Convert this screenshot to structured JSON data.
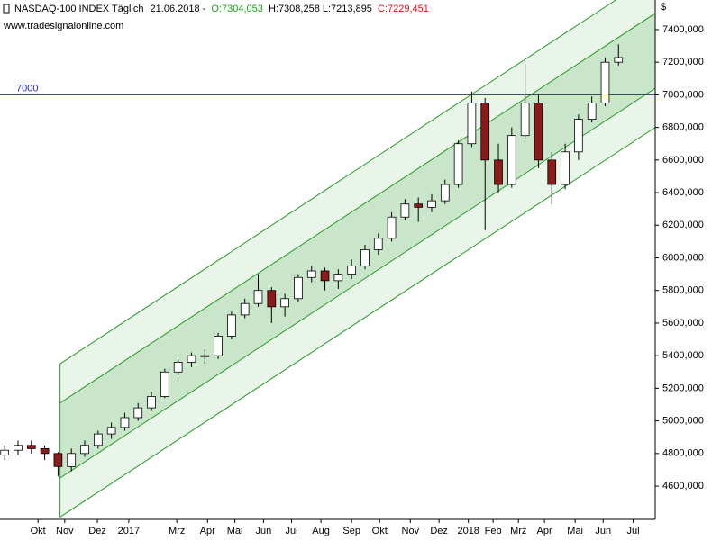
{
  "chart_data": {
    "type": "candlestick",
    "title": "NASDAQ-100 INDEX Täglich",
    "date": "21.06.2018 -",
    "open_label": "O:7304,053",
    "high_low_label": "H:7308,258 L:7213,895",
    "close_label": "C:7229,451",
    "website": "www.tradesignalonline.com",
    "currency": "$",
    "x": [
      0,
      2,
      4,
      6,
      8,
      10,
      12,
      14,
      16,
      18,
      20,
      22,
      24,
      26,
      28,
      30,
      32,
      34,
      36,
      38,
      40,
      42,
      44,
      46,
      48,
      50,
      52,
      54,
      56,
      58,
      60,
      62,
      64,
      66,
      68,
      70,
      72,
      74,
      76,
      78,
      80,
      82,
      84,
      86,
      88,
      90,
      92
    ],
    "open": [
      4790,
      4820,
      4850,
      4830,
      4800,
      4720,
      4800,
      4850,
      4920,
      4960,
      5020,
      5080,
      5150,
      5300,
      5360,
      5400,
      5400,
      5520,
      5650,
      5720,
      5800,
      5700,
      5750,
      5880,
      5920,
      5860,
      5900,
      5950,
      6050,
      6120,
      6250,
      6330,
      6310,
      6350,
      6450,
      6700,
      6950,
      6600,
      6450,
      6750,
      6950,
      6600,
      6450,
      6650,
      6850,
      6950,
      7200
    ],
    "high": [
      4850,
      4880,
      4880,
      4850,
      4810,
      4830,
      4880,
      4940,
      4990,
      5050,
      5110,
      5180,
      5320,
      5380,
      5420,
      5440,
      5540,
      5670,
      5750,
      5900,
      5820,
      5780,
      5900,
      5950,
      5940,
      5930,
      5990,
      6080,
      6150,
      6280,
      6360,
      6370,
      6390,
      6480,
      6720,
      7020,
      6980,
      6700,
      6800,
      7190,
      7000,
      6650,
      6700,
      6880,
      6990,
      7230,
      7310
    ],
    "low": [
      4760,
      4790,
      4800,
      4760,
      4660,
      4690,
      4780,
      4830,
      4890,
      4940,
      5000,
      5060,
      5140,
      5280,
      5330,
      5350,
      5380,
      5500,
      5630,
      5700,
      5600,
      5640,
      5730,
      5850,
      5800,
      5810,
      5870,
      5930,
      6020,
      6100,
      6230,
      6220,
      6280,
      6330,
      6430,
      6680,
      6170,
      6400,
      6430,
      6730,
      6550,
      6330,
      6420,
      6600,
      6830,
      6930,
      7180
    ],
    "close": [
      4820,
      4850,
      4830,
      4800,
      4720,
      4800,
      4850,
      4920,
      4960,
      5020,
      5080,
      5150,
      5300,
      5360,
      5400,
      5400,
      5520,
      5650,
      5720,
      5800,
      5700,
      5750,
      5880,
      5920,
      5860,
      5900,
      5950,
      6050,
      6120,
      6250,
      6330,
      6310,
      6350,
      6450,
      6700,
      6950,
      6600,
      6450,
      6750,
      6950,
      6600,
      6450,
      6650,
      6850,
      6950,
      7200,
      7229
    ],
    "up_color": "#ffffff",
    "down_color": "#8b1a1a",
    "xlim": [
      -0.7,
      97.5
    ],
    "ylim": [
      4396,
      7582
    ],
    "xticks": [
      {
        "value": 5,
        "label": "Okt"
      },
      {
        "value": 9,
        "label": "Nov"
      },
      {
        "value": 13.9,
        "label": "Dez"
      },
      {
        "value": 18.6,
        "label": "2017"
      },
      {
        "value": 25.8,
        "label": "Mrz"
      },
      {
        "value": 30.4,
        "label": "Apr"
      },
      {
        "value": 34.5,
        "label": "Mai"
      },
      {
        "value": 38.8,
        "label": "Jun"
      },
      {
        "value": 43,
        "label": "Jul"
      },
      {
        "value": 47.4,
        "label": "Aug"
      },
      {
        "value": 52,
        "label": "Sep"
      },
      {
        "value": 56.2,
        "label": "Okt"
      },
      {
        "value": 60.8,
        "label": "Nov"
      },
      {
        "value": 65.1,
        "label": "Dez"
      },
      {
        "value": 69.5,
        "label": "2018"
      },
      {
        "value": 73.2,
        "label": "Feb"
      },
      {
        "value": 77,
        "label": "Mrz"
      },
      {
        "value": 80.9,
        "label": "Apr"
      },
      {
        "value": 85.5,
        "label": "Mai"
      },
      {
        "value": 89.7,
        "label": "Jun"
      },
      {
        "value": 94.2,
        "label": "Jul"
      }
    ],
    "yticks": [
      {
        "value": 4600,
        "label": "4600,000"
      },
      {
        "value": 4800,
        "label": "4800,000"
      },
      {
        "value": 5000,
        "label": "5000,000"
      },
      {
        "value": 5200,
        "label": "5200,000"
      },
      {
        "value": 5400,
        "label": "5400,000"
      },
      {
        "value": 5600,
        "label": "5600,000"
      },
      {
        "value": 5800,
        "label": "5800,000"
      },
      {
        "value": 6000,
        "label": "6000,000"
      },
      {
        "value": 6200,
        "label": "6200,000"
      },
      {
        "value": 6400,
        "label": "6400,000"
      },
      {
        "value": 6600,
        "label": "6600,000"
      },
      {
        "value": 6800,
        "label": "6800,000"
      },
      {
        "value": 7000,
        "label": "7000,000"
      },
      {
        "value": 7200,
        "label": "7200,000"
      },
      {
        "value": 7400,
        "label": "7400,000"
      }
    ],
    "hline": {
      "value": 7000,
      "label": "7000",
      "color": "#2222dd"
    },
    "channel": {
      "x": [
        8.3,
        97.5
      ],
      "lines": [
        [
          5350,
          7740
        ],
        [
          5110,
          7500
        ],
        [
          4650,
          7040
        ],
        [
          4410,
          6800
        ]
      ],
      "color": "#2a9a2a"
    }
  }
}
